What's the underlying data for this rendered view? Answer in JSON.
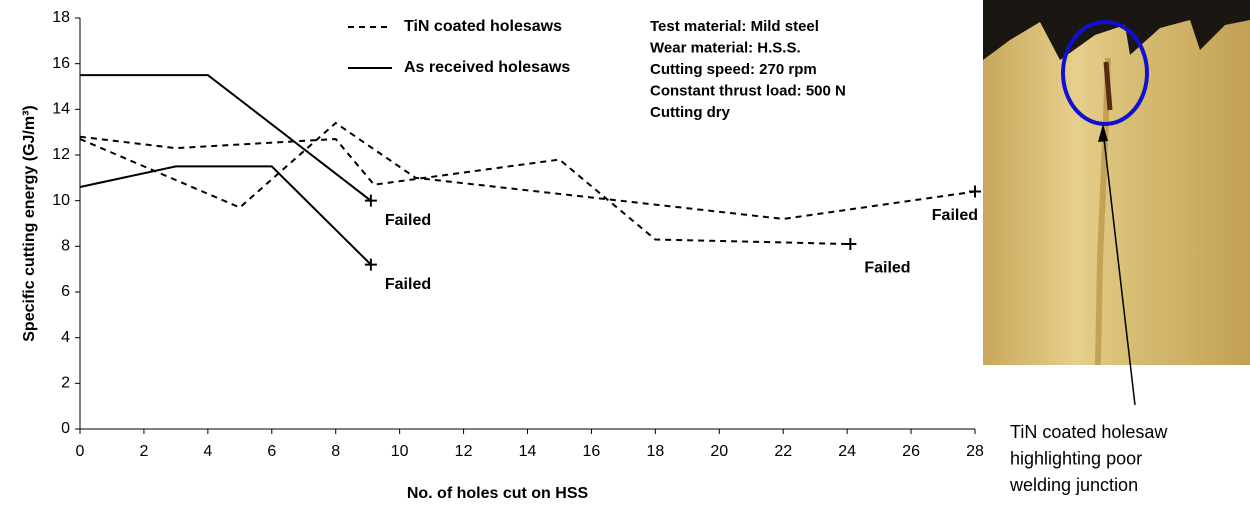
{
  "chart_data": {
    "type": "line",
    "x_label": "No. of holes cut on HSS",
    "y_label": "Specific cutting energy (GJ/m³)",
    "xlim": [
      0,
      28
    ],
    "xticks": [
      0,
      2,
      4,
      6,
      8,
      10,
      12,
      14,
      16,
      18,
      20,
      22,
      24,
      26,
      28
    ],
    "ylim": [
      0,
      18
    ],
    "yticks": [
      0,
      2,
      4,
      6,
      8,
      10,
      12,
      14,
      16,
      18
    ],
    "color": "#000000",
    "series": [
      {
        "name": "TiN coated holesaws",
        "dash": true,
        "runs": [
          {
            "x": [
              0,
              3,
              8,
              9.2,
              15,
              18,
              24.1
            ],
            "values": [
              12.8,
              12.3,
              12.7,
              10.7,
              11.8,
              8.3,
              8.1
            ],
            "end_label": "Failed"
          },
          {
            "x": [
              0,
              5,
              8,
              10.5,
              22,
              28
            ],
            "values": [
              12.7,
              9.7,
              13.4,
              11,
              9.2,
              10.4
            ],
            "end_label": "Failed"
          }
        ]
      },
      {
        "name": "As received holesaws",
        "dash": false,
        "runs": [
          {
            "x": [
              0,
              4,
              9.1
            ],
            "values": [
              15.5,
              15.5,
              10
            ],
            "end_label": "Failed"
          },
          {
            "x": [
              0,
              3,
              6,
              9.1
            ],
            "values": [
              10.6,
              11.5,
              11.5,
              7.2
            ],
            "end_label": "Failed"
          }
        ]
      }
    ],
    "info_box": [
      "Test material: Mild steel",
      "Wear material: H.S.S.",
      "Cutting speed: 270 rpm",
      "Constant thrust load: 500 N",
      "Cutting dry"
    ]
  },
  "photo": {
    "caption": [
      "TiN coated holesaw",
      "highlighting poor",
      "welding junction"
    ]
  }
}
